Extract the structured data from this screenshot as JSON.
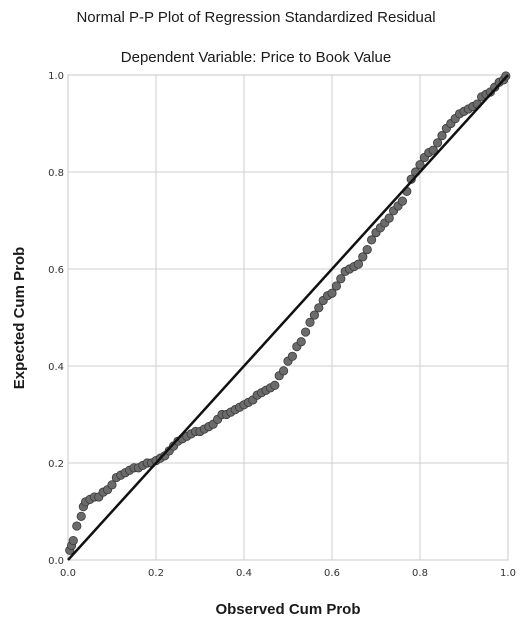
{
  "chart_data": {
    "type": "scatter",
    "title": "Normal P-P Plot of Regression Standardized Residual",
    "subtitle": "Dependent Variable: Price to Book Value",
    "xlabel": "Observed Cum Prob",
    "ylabel": "Expected Cum Prob",
    "xlim": [
      0,
      1
    ],
    "ylim": [
      0,
      1
    ],
    "xticks": [
      "0.0",
      "0.2",
      "0.4",
      "0.6",
      "0.8",
      "1.0"
    ],
    "yticks": [
      "0.0",
      "0.2",
      "0.4",
      "0.6",
      "0.8",
      "1.0"
    ],
    "grid": true,
    "reference_line": {
      "from": [
        0,
        0
      ],
      "to": [
        1,
        1
      ]
    },
    "points": [
      [
        0.004,
        0.02
      ],
      [
        0.008,
        0.03
      ],
      [
        0.012,
        0.04
      ],
      [
        0.02,
        0.07
      ],
      [
        0.03,
        0.09
      ],
      [
        0.035,
        0.11
      ],
      [
        0.04,
        0.12
      ],
      [
        0.05,
        0.125
      ],
      [
        0.06,
        0.13
      ],
      [
        0.07,
        0.13
      ],
      [
        0.08,
        0.14
      ],
      [
        0.09,
        0.145
      ],
      [
        0.1,
        0.155
      ],
      [
        0.11,
        0.17
      ],
      [
        0.12,
        0.175
      ],
      [
        0.13,
        0.18
      ],
      [
        0.14,
        0.185
      ],
      [
        0.15,
        0.19
      ],
      [
        0.16,
        0.19
      ],
      [
        0.17,
        0.195
      ],
      [
        0.18,
        0.2
      ],
      [
        0.19,
        0.2
      ],
      [
        0.2,
        0.205
      ],
      [
        0.21,
        0.21
      ],
      [
        0.22,
        0.215
      ],
      [
        0.23,
        0.225
      ],
      [
        0.24,
        0.235
      ],
      [
        0.25,
        0.245
      ],
      [
        0.26,
        0.25
      ],
      [
        0.27,
        0.255
      ],
      [
        0.28,
        0.26
      ],
      [
        0.29,
        0.265
      ],
      [
        0.3,
        0.265
      ],
      [
        0.31,
        0.27
      ],
      [
        0.32,
        0.275
      ],
      [
        0.33,
        0.28
      ],
      [
        0.34,
        0.29
      ],
      [
        0.35,
        0.3
      ],
      [
        0.36,
        0.3
      ],
      [
        0.37,
        0.305
      ],
      [
        0.38,
        0.31
      ],
      [
        0.39,
        0.315
      ],
      [
        0.4,
        0.32
      ],
      [
        0.41,
        0.325
      ],
      [
        0.42,
        0.33
      ],
      [
        0.43,
        0.34
      ],
      [
        0.44,
        0.345
      ],
      [
        0.45,
        0.35
      ],
      [
        0.46,
        0.355
      ],
      [
        0.47,
        0.36
      ],
      [
        0.48,
        0.38
      ],
      [
        0.49,
        0.39
      ],
      [
        0.5,
        0.41
      ],
      [
        0.51,
        0.42
      ],
      [
        0.52,
        0.44
      ],
      [
        0.53,
        0.45
      ],
      [
        0.54,
        0.47
      ],
      [
        0.55,
        0.49
      ],
      [
        0.56,
        0.505
      ],
      [
        0.57,
        0.52
      ],
      [
        0.58,
        0.535
      ],
      [
        0.59,
        0.545
      ],
      [
        0.6,
        0.55
      ],
      [
        0.61,
        0.565
      ],
      [
        0.62,
        0.58
      ],
      [
        0.63,
        0.595
      ],
      [
        0.64,
        0.6
      ],
      [
        0.65,
        0.605
      ],
      [
        0.66,
        0.61
      ],
      [
        0.67,
        0.625
      ],
      [
        0.68,
        0.64
      ],
      [
        0.69,
        0.66
      ],
      [
        0.7,
        0.675
      ],
      [
        0.71,
        0.685
      ],
      [
        0.72,
        0.695
      ],
      [
        0.73,
        0.705
      ],
      [
        0.74,
        0.72
      ],
      [
        0.75,
        0.73
      ],
      [
        0.76,
        0.74
      ],
      [
        0.77,
        0.76
      ],
      [
        0.78,
        0.785
      ],
      [
        0.79,
        0.8
      ],
      [
        0.8,
        0.815
      ],
      [
        0.81,
        0.83
      ],
      [
        0.82,
        0.84
      ],
      [
        0.83,
        0.845
      ],
      [
        0.84,
        0.86
      ],
      [
        0.85,
        0.875
      ],
      [
        0.86,
        0.89
      ],
      [
        0.87,
        0.9
      ],
      [
        0.88,
        0.91
      ],
      [
        0.89,
        0.92
      ],
      [
        0.9,
        0.925
      ],
      [
        0.91,
        0.93
      ],
      [
        0.92,
        0.935
      ],
      [
        0.93,
        0.94
      ],
      [
        0.94,
        0.955
      ],
      [
        0.95,
        0.96
      ],
      [
        0.96,
        0.965
      ],
      [
        0.97,
        0.975
      ],
      [
        0.98,
        0.985
      ],
      [
        0.99,
        0.99
      ],
      [
        0.995,
        0.998
      ]
    ]
  }
}
